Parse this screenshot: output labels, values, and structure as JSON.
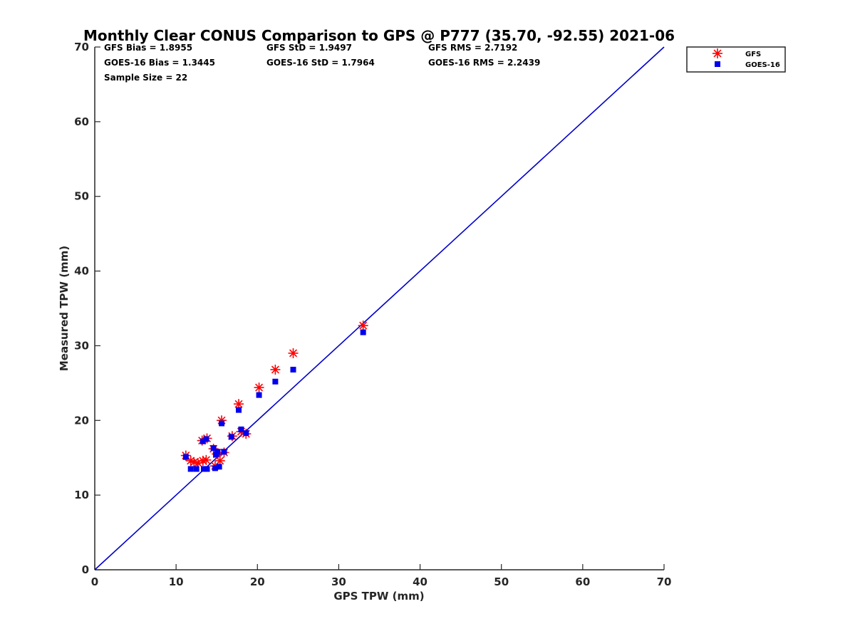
{
  "title": "Monthly Clear CONUS Comparison to GPS @ P777 (35.70, -92.55) 2021-06",
  "stats": [
    [
      "GFS Bias = 1.8955",
      "GFS StD = 1.9497",
      "GFS RMS = 2.7192"
    ],
    [
      "GOES-16 Bias = 1.3445",
      "GOES-16 StD = 1.7964",
      "GOES-16 RMS = 2.2439"
    ],
    [
      "Sample Size = 22"
    ]
  ],
  "chart_data": {
    "type": "scatter",
    "title": "Monthly Clear CONUS Comparison to GPS @ P777 (35.70, -92.55) 2021-06",
    "xlabel": "GPS TPW (mm)",
    "ylabel": "Measured TPW (mm)",
    "xlim": [
      0,
      70
    ],
    "ylim": [
      0,
      70
    ],
    "xticks": [
      0,
      10,
      20,
      30,
      40,
      50,
      60,
      70
    ],
    "yticks": [
      0,
      10,
      20,
      30,
      40,
      50,
      60,
      70
    ],
    "grid": false,
    "legend_position": "top-right, outside plot",
    "reference_line": {
      "type": "identity",
      "x": [
        0,
        70
      ],
      "y": [
        0,
        70
      ],
      "color": "#0000cc"
    },
    "series": [
      {
        "name": "GFS",
        "marker": "asterisk",
        "color": "#ff0000",
        "points": [
          [
            11.2,
            15.3
          ],
          [
            11.8,
            14.6
          ],
          [
            12.2,
            14.4
          ],
          [
            12.7,
            14.3
          ],
          [
            13.3,
            14.6
          ],
          [
            13.7,
            14.7
          ],
          [
            13.2,
            17.3
          ],
          [
            13.8,
            17.6
          ],
          [
            14.6,
            16.2
          ],
          [
            15.0,
            15.5
          ],
          [
            14.8,
            13.9
          ],
          [
            15.4,
            14.6
          ],
          [
            15.9,
            15.7
          ],
          [
            15.6,
            20.0
          ],
          [
            16.9,
            17.9
          ],
          [
            18.0,
            18.5
          ],
          [
            18.6,
            18.2
          ],
          [
            17.7,
            22.2
          ],
          [
            20.2,
            24.4
          ],
          [
            22.2,
            26.8
          ],
          [
            24.4,
            29.0
          ],
          [
            33.0,
            32.7
          ]
        ]
      },
      {
        "name": "GOES-16",
        "marker": "square",
        "color": "#0000ee",
        "points": [
          [
            11.2,
            15.1
          ],
          [
            11.8,
            13.5
          ],
          [
            12.5,
            13.5
          ],
          [
            13.4,
            13.5
          ],
          [
            13.8,
            13.5
          ],
          [
            13.3,
            17.2
          ],
          [
            13.7,
            17.5
          ],
          [
            14.6,
            16.3
          ],
          [
            14.9,
            15.4
          ],
          [
            15.1,
            15.8
          ],
          [
            14.8,
            13.6
          ],
          [
            15.3,
            13.8
          ],
          [
            15.9,
            15.8
          ],
          [
            15.6,
            19.6
          ],
          [
            16.8,
            17.8
          ],
          [
            18.0,
            18.8
          ],
          [
            18.6,
            18.3
          ],
          [
            17.7,
            21.4
          ],
          [
            20.2,
            23.4
          ],
          [
            22.2,
            25.2
          ],
          [
            24.4,
            26.8
          ],
          [
            33.0,
            31.8
          ]
        ]
      }
    ]
  }
}
